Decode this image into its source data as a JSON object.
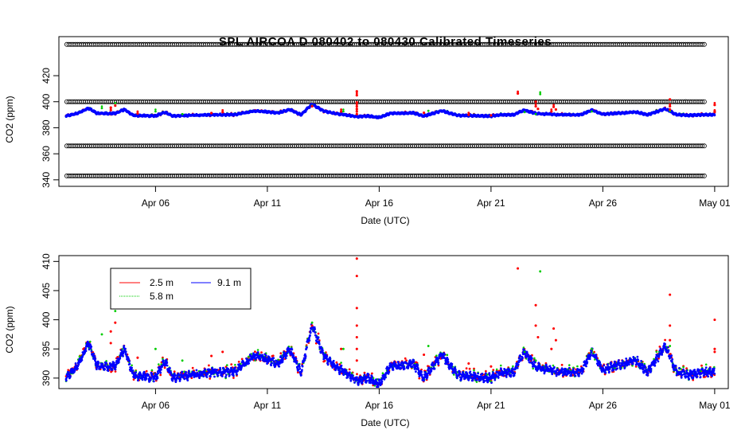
{
  "title": "SPL   AIRCOA  D    080402  to  080430   Calibrated Timeseries",
  "colors": {
    "h25": "#ff0000",
    "h58": "#00cc00",
    "h91": "#0000ff",
    "refs": "#000000"
  },
  "chart_data": [
    {
      "type": "scatter",
      "title": "SPL   AIRCOA  D    080402  to  080430   Calibrated Timeseries",
      "xlabel": "Date (UTC)",
      "ylabel": "CO2 (ppm)",
      "x_ticks": [
        "Apr 06",
        "Apr 11",
        "Apr 16",
        "Apr 21",
        "Apr 26",
        "May 01"
      ],
      "y_ticks": [
        340,
        360,
        380,
        400,
        420
      ],
      "xlim_days": [
        2.0,
        31.0
      ],
      "ylim": [
        335,
        450
      ],
      "reference_levels_ppm": [
        343,
        366,
        400,
        444
      ],
      "series_drawn": [
        "2.5 m",
        "5.8 m",
        "9.1 m",
        "reference gases"
      ]
    },
    {
      "type": "scatter",
      "xlabel": "Date (UTC)",
      "ylabel": "CO2 (ppm)",
      "x_ticks": [
        "Apr 06",
        "Apr 11",
        "Apr 16",
        "Apr 21",
        "Apr 26",
        "May 01"
      ],
      "y_ticks": [
        390,
        395,
        400,
        405,
        410
      ],
      "xlim_days": [
        2.0,
        31.0
      ],
      "ylim": [
        388.2,
        411
      ],
      "legend": [
        "2.5 m",
        "5.8 m",
        "9.1 m"
      ],
      "legend_position": "top-left",
      "series": [
        {
          "name": "9.1 m",
          "anchors": [
            [
              2.0,
              390
            ],
            [
              2.5,
              392
            ],
            [
              3.0,
              396
            ],
            [
              3.4,
              392
            ],
            [
              4.2,
              392
            ],
            [
              4.6,
              395
            ],
            [
              5.0,
              390.5
            ],
            [
              6.0,
              390
            ],
            [
              6.4,
              393
            ],
            [
              6.8,
              390
            ],
            [
              7.5,
              390.5
            ],
            [
              8.5,
              391
            ],
            [
              9.5,
              391
            ],
            [
              10.5,
              394
            ],
            [
              11.5,
              392.5
            ],
            [
              12.0,
              395
            ],
            [
              12.5,
              391
            ],
            [
              13.0,
              399
            ],
            [
              13.5,
              394
            ],
            [
              14.0,
              392
            ],
            [
              14.5,
              391
            ],
            [
              15.0,
              389.5
            ],
            [
              15.5,
              390
            ],
            [
              16.0,
              389
            ],
            [
              16.5,
              392
            ],
            [
              17.5,
              392.5
            ],
            [
              18.0,
              390
            ],
            [
              18.8,
              394
            ],
            [
              19.5,
              390.5
            ],
            [
              21.0,
              390
            ],
            [
              21.5,
              391
            ],
            [
              22.0,
              391
            ],
            [
              22.5,
              394.5
            ],
            [
              23.0,
              392
            ],
            [
              23.5,
              391.5
            ],
            [
              24.0,
              391
            ],
            [
              25.0,
              391
            ],
            [
              25.5,
              394.5
            ],
            [
              26.0,
              391.5
            ],
            [
              27.5,
              393
            ],
            [
              28.0,
              391
            ],
            [
              28.8,
              395.5
            ],
            [
              29.3,
              391
            ],
            [
              29.8,
              390.5
            ],
            [
              30.5,
              391
            ],
            [
              31.0,
              391
            ]
          ]
        },
        {
          "name": "2.5 m",
          "spikes": [
            [
              15.0,
              410.5
            ],
            [
              15.0,
              407.5
            ],
            [
              15.0,
              402
            ],
            [
              15.0,
              399
            ],
            [
              15.0,
              397
            ],
            [
              15.0,
              395
            ],
            [
              15.0,
              393
            ],
            [
              22.2,
              408.8
            ],
            [
              23.0,
              402.5
            ],
            [
              23.0,
              399
            ],
            [
              23.1,
              397
            ],
            [
              23.8,
              398.5
            ],
            [
              23.9,
              396.5
            ],
            [
              23.7,
              395
            ],
            [
              29.0,
              404.3
            ],
            [
              29.0,
              399
            ],
            [
              29.0,
              396.5
            ],
            [
              31.0,
              400
            ],
            [
              31.0,
              395
            ],
            [
              31.0,
              394.5
            ],
            [
              4.0,
              398
            ],
            [
              4.0,
              396
            ],
            [
              4.2,
              399.5
            ],
            [
              5.2,
              393.5
            ],
            [
              13.0,
              399
            ],
            [
              14.3,
              395
            ],
            [
              8.5,
              393.8
            ],
            [
              9.0,
              394.5
            ],
            [
              18.0,
              394
            ],
            [
              20.0,
              392.5
            ],
            [
              21.0,
              392
            ]
          ]
        },
        {
          "name": "5.8 m",
          "spikes": [
            [
              23.2,
              408.3
            ],
            [
              4.2,
              401.5
            ],
            [
              3.6,
              397.5
            ],
            [
              13.0,
              399.5
            ],
            [
              6.0,
              395
            ],
            [
              7.2,
              393
            ],
            [
              14.4,
              395
            ],
            [
              18.2,
              395.5
            ],
            [
              25.5,
              395
            ],
            [
              29.0,
              395.5
            ],
            [
              22.5,
              394.5
            ],
            [
              23.0,
              393
            ]
          ]
        }
      ]
    }
  ]
}
